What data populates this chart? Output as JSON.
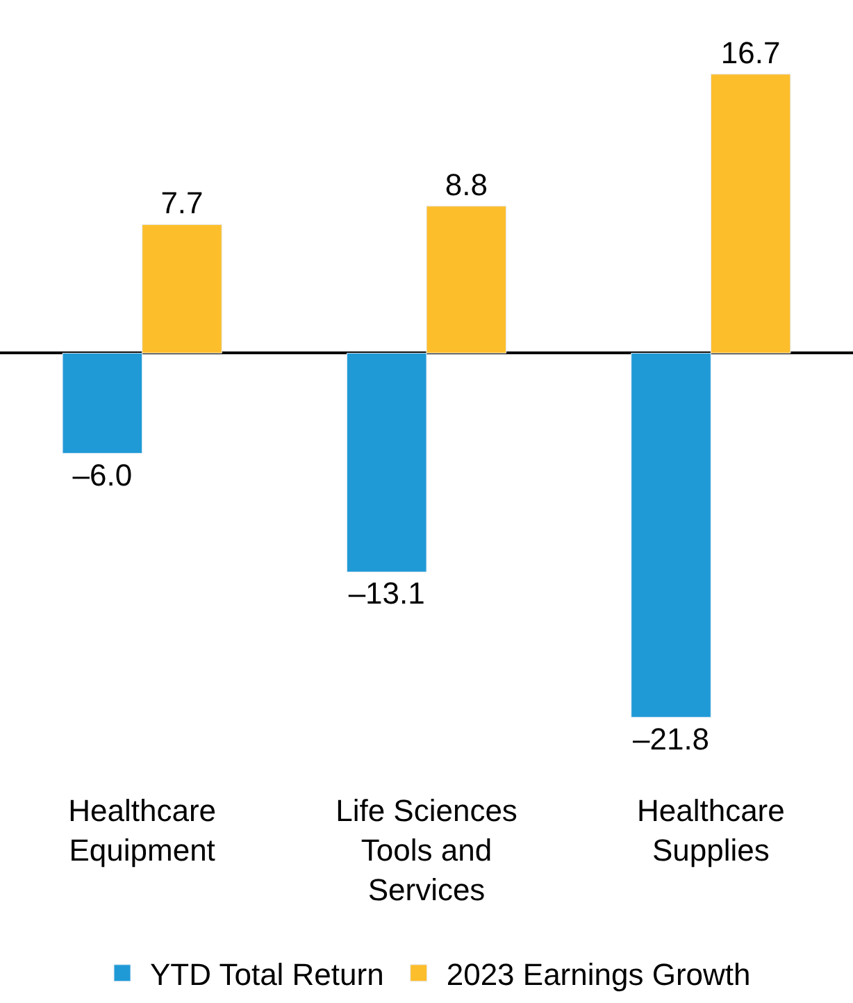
{
  "chart_data": {
    "type": "bar",
    "categories": [
      "Healthcare Equipment",
      "Life Sciences Tools and Services",
      "Healthcare Supplies"
    ],
    "series": [
      {
        "name": "YTD Total Return",
        "color": "#1f9ad6",
        "values": [
          -6.0,
          -13.1,
          -21.8
        ],
        "value_labels": [
          "–6.0",
          "–13.1",
          "–21.8"
        ]
      },
      {
        "name": "2023 Earnings Growth",
        "color": "#fdbe2c",
        "values": [
          7.7,
          8.8,
          16.7
        ],
        "value_labels": [
          "7.7",
          "8.8",
          "16.7"
        ]
      }
    ],
    "tick_labels": "x",
    "legend": "bottom"
  }
}
